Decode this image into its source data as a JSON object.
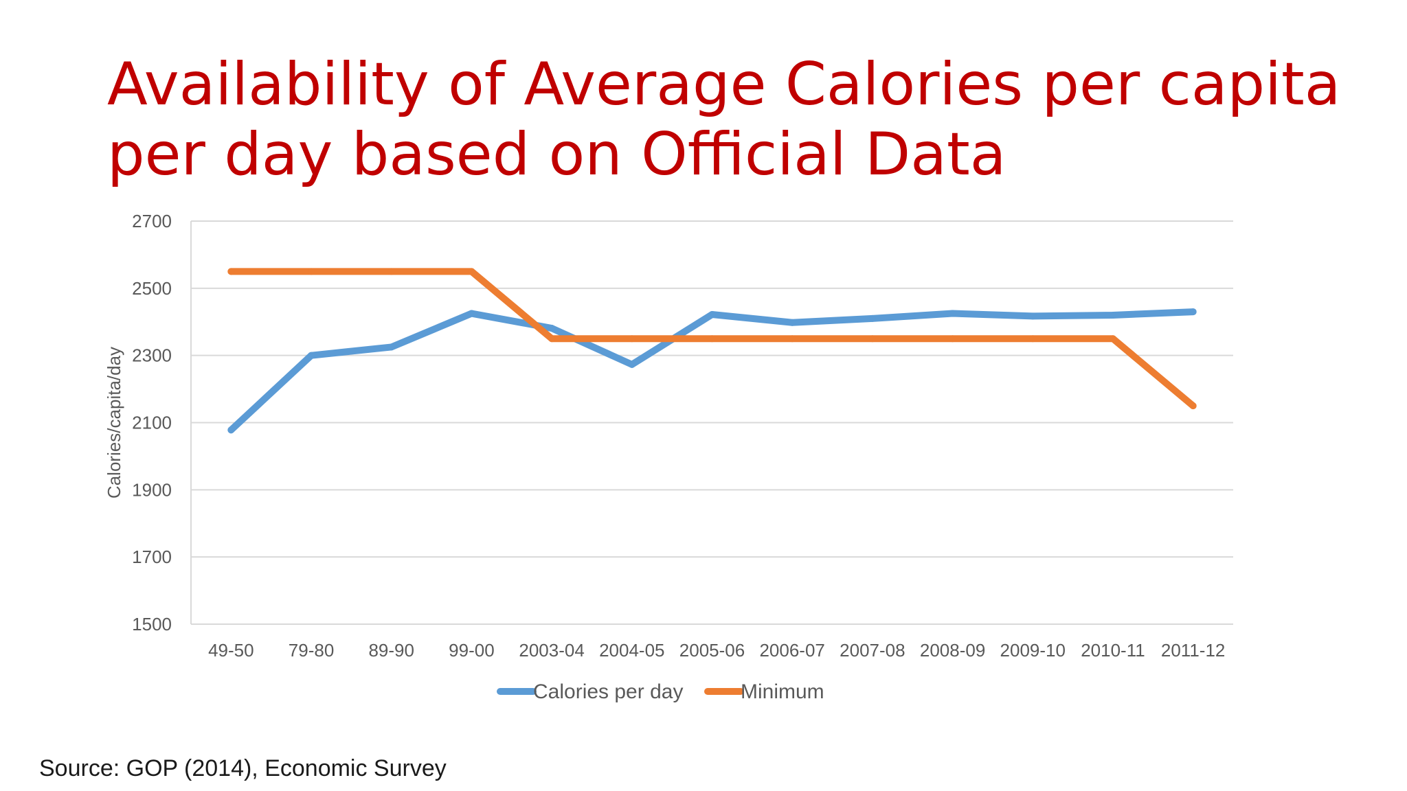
{
  "slide": {
    "title": "Availability of Average Calories per capita per day based on Official Data",
    "source": "Source: GOP (2014), Economic Survey"
  },
  "chart_data": {
    "type": "line",
    "categories": [
      "49-50",
      "79-80",
      "89-90",
      "99-00",
      "2003-04",
      "2004-05",
      "2005-06",
      "2006-07",
      "2007-08",
      "2008-09",
      "2009-10",
      "2010-11",
      "2011-12"
    ],
    "series": [
      {
        "name": "Calories per day",
        "color": "#5b9bd5",
        "values": [
          2078,
          2300,
          2325,
          2425,
          2381,
          2273,
          2422,
          2398,
          2410,
          2425,
          2417,
          2420,
          2430
        ]
      },
      {
        "name": "Minimum",
        "color": "#ed7d31",
        "values": [
          2550,
          2550,
          2550,
          2550,
          2350,
          2350,
          2350,
          2350,
          2350,
          2350,
          2350,
          2350,
          2150
        ]
      }
    ],
    "title": "",
    "xlabel": "",
    "ylabel": "Calories/capita/day",
    "ylim": [
      1500,
      2700
    ],
    "yticks": [
      1500,
      1700,
      1900,
      2100,
      2300,
      2500,
      2700
    ],
    "grid": true,
    "legend_position": "bottom",
    "gridline_color": "#d9d9d9"
  }
}
